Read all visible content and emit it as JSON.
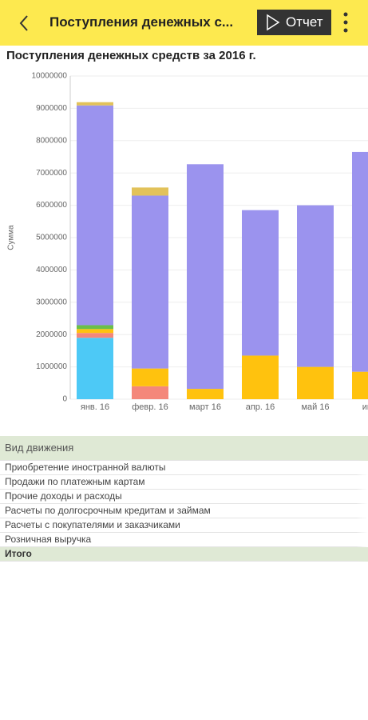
{
  "header": {
    "title": "Поступления денежных с...",
    "button": "Отчет"
  },
  "chart_data": {
    "type": "bar",
    "stacked": true,
    "title": "Поступления денежных средств за 2016 г.",
    "y_label": "Сумма",
    "categories": [
      "янв. 16",
      "февр. 16",
      "март 16",
      "апр. 16",
      "май 16",
      "июн"
    ],
    "series": [
      {
        "name": "Продажи по платежным картам",
        "color": "#4dc9f6",
        "values": [
          1900000,
          null,
          null,
          null,
          null,
          null
        ]
      },
      {
        "name": "Прочие доходы и расходы",
        "color": "#f4877a",
        "values": [
          150000,
          400000,
          null,
          null,
          null,
          null
        ]
      },
      {
        "name": "Розничная выручка",
        "color": "#ffc20e",
        "values": [
          120000,
          550000,
          320000,
          1350000,
          1000000,
          850000
        ]
      },
      {
        "name": "Приобретение иностранной валюты",
        "color": "#6abf4b",
        "values": [
          120000,
          null,
          null,
          null,
          null,
          null
        ]
      },
      {
        "name": "Расчеты с покупателями и заказчиками",
        "color": "#9b93ee",
        "values": [
          6800000,
          5350000,
          6950000,
          4500000,
          5000000,
          6800000
        ]
      },
      {
        "name": "Расчеты по долгосрочным кредитам и займам",
        "color": "#e2c25a",
        "values": [
          100000,
          250000,
          null,
          null,
          null,
          null
        ]
      }
    ],
    "ylim": [
      0,
      10000000
    ],
    "yticks": [
      0,
      1000000,
      2000000,
      3000000,
      4000000,
      5000000,
      6000000,
      7000000,
      8000000,
      9000000,
      10000000
    ],
    "grid": true
  },
  "table": {
    "header": "Вид движения",
    "total": "Итого"
  }
}
